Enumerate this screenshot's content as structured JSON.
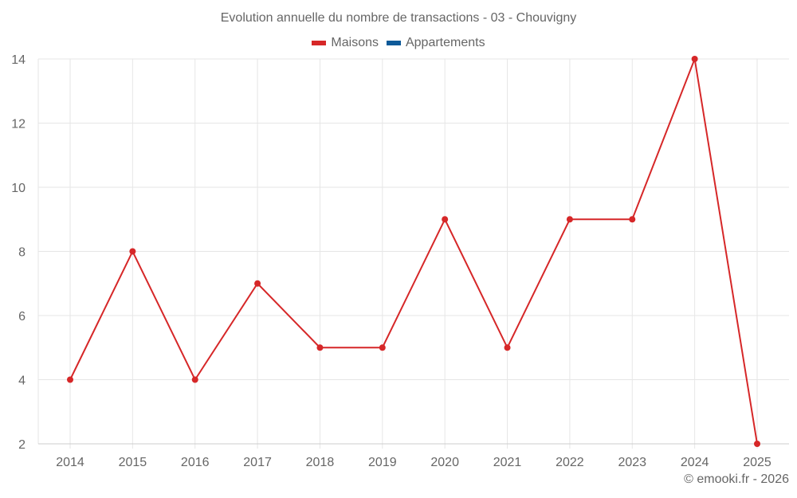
{
  "chart_data": {
    "type": "line",
    "title": "Evolution annuelle du nombre de transactions - 03 - Chouvigny",
    "categories": [
      "2014",
      "2015",
      "2016",
      "2017",
      "2018",
      "2019",
      "2020",
      "2021",
      "2022",
      "2023",
      "2024",
      "2025"
    ],
    "series": [
      {
        "name": "Maisons",
        "color": "#d62728",
        "values": [
          4,
          8,
          4,
          7,
          5,
          5,
          9,
          5,
          9,
          9,
          14,
          2
        ]
      },
      {
        "name": "Appartements",
        "color": "#1f77b4",
        "values": []
      }
    ],
    "xlabel": "",
    "ylabel": "",
    "ylim": [
      2,
      14
    ],
    "yticks": [
      2,
      4,
      6,
      8,
      10,
      12,
      14
    ],
    "grid": true,
    "legend_position": "top"
  },
  "legend": {
    "items": [
      {
        "label": "Maisons",
        "color": "#d62728"
      },
      {
        "label": "Appartements",
        "color": "#0e5a99"
      }
    ]
  },
  "footer": "© emooki.fr - 2026"
}
